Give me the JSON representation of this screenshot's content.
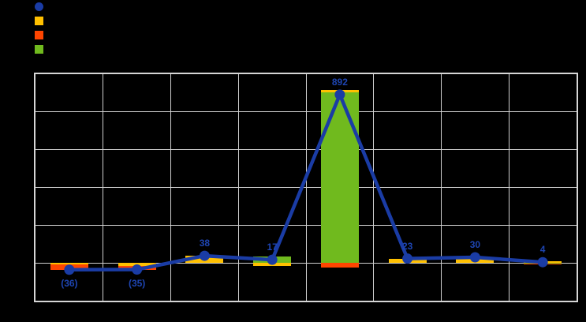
{
  "window": {
    "background_color": "#000000",
    "title": ""
  },
  "legend": {
    "position": "top-left",
    "items": [
      {
        "series": "line-series",
        "marker": "circle",
        "color": "#1A3CA5",
        "label": ""
      },
      {
        "series": "yellow-series",
        "marker": "square",
        "color": "#FFC000",
        "label": ""
      },
      {
        "series": "orange-series",
        "marker": "square",
        "color": "#FF4500",
        "label": ""
      },
      {
        "series": "green-series",
        "marker": "square",
        "color": "#70BA1E",
        "label": ""
      }
    ]
  },
  "chart_data": {
    "type": "bar",
    "subtype": "stacked-bars-with-line-overlay",
    "title": "",
    "xlabel": "",
    "ylabel": "",
    "categories": [
      "",
      "",
      "",
      "",
      "",
      "",
      "",
      ""
    ],
    "num_categories": 8,
    "ylim": [
      -200,
      1000
    ],
    "ytick_step": 200,
    "grid": true,
    "gridline_color": "#CFCFCF",
    "plot_background": "#000000",
    "page_background": "#000000",
    "legend_position": "top-left",
    "note_axis_labels": "axis tick and category labels are rendered black-on-black (not visible)",
    "series": [
      {
        "name": "green-bars",
        "type": "bar",
        "color": "#70BA1E",
        "values": [
          0,
          0,
          0,
          33,
          905,
          0,
          0,
          -2
        ]
      },
      {
        "name": "yellow-bars",
        "type": "bar",
        "color": "#FFC000",
        "values": [
          -8,
          -15,
          38,
          -16,
          10,
          23,
          30,
          9
        ]
      },
      {
        "name": "orange-bars",
        "type": "bar",
        "color": "#FF4500",
        "values": [
          -28,
          -20,
          0,
          0,
          -23,
          0,
          0,
          -3
        ]
      }
    ],
    "line": {
      "name": "net-line",
      "type": "line",
      "color": "#1A3CA5",
      "marker": "circle",
      "values": [
        -36,
        -35,
        38,
        17,
        892,
        23,
        30,
        4
      ],
      "labels": [
        "(36)",
        "(35)",
        "38",
        "17",
        "892",
        "23",
        "30",
        "4"
      ],
      "label_positions": [
        "below",
        "below",
        "above",
        "above",
        "above",
        "above",
        "above",
        "above"
      ],
      "label_color": "#1E45B2"
    }
  }
}
